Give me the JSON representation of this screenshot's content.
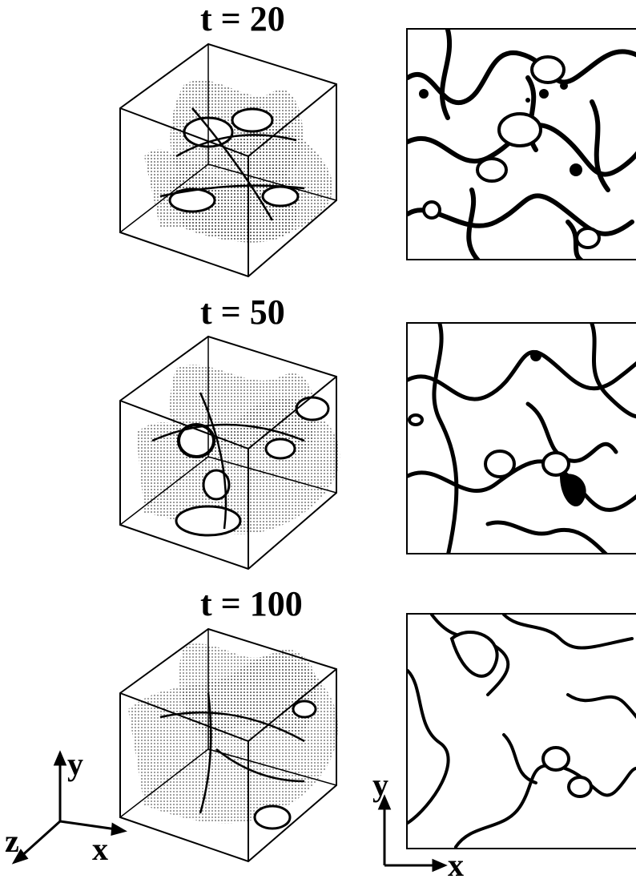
{
  "figure": {
    "panels": [
      {
        "time_label": "t = 20"
      },
      {
        "time_label": "t = 50"
      },
      {
        "time_label": "t = 100"
      }
    ],
    "axes_3d": {
      "y": "y",
      "x": "x",
      "z": "z"
    },
    "axes_2d": {
      "y": "y",
      "x": "x"
    }
  },
  "colors": {
    "ink": "#000000",
    "background": "#ffffff",
    "stipple": "#555555"
  }
}
